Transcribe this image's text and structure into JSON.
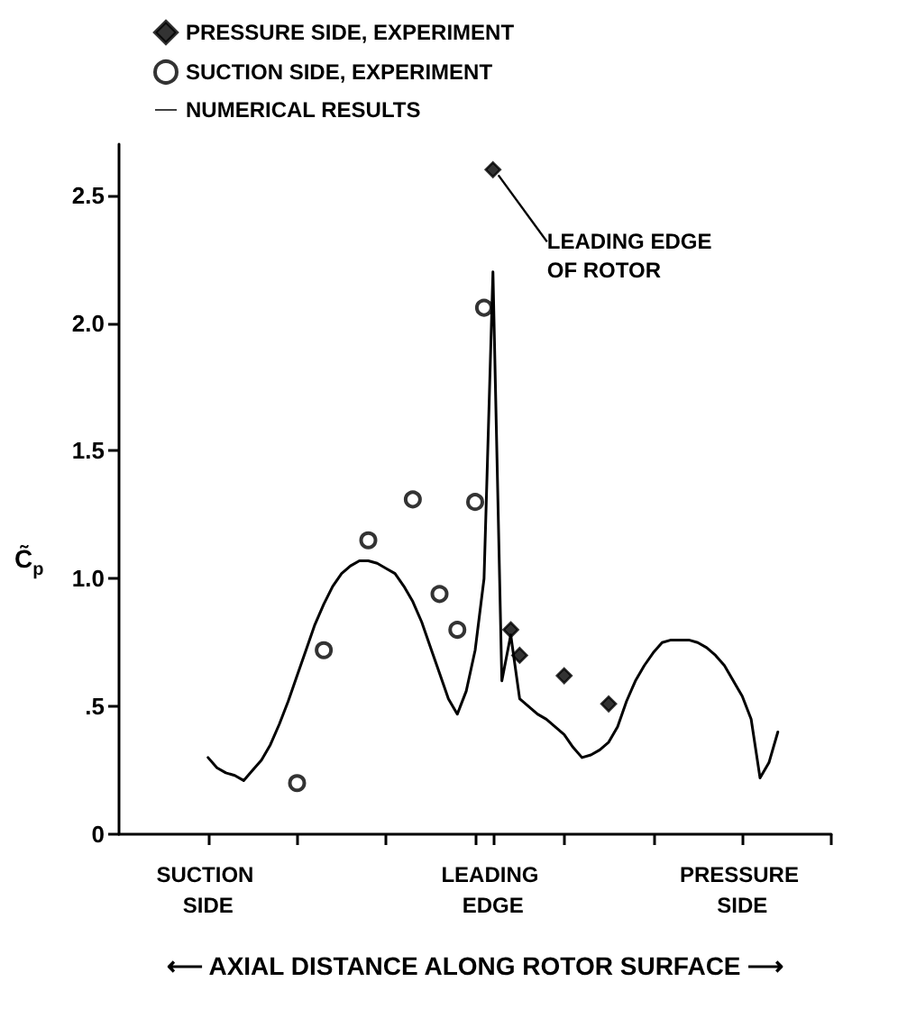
{
  "chart_data": {
    "type": "scatter",
    "xlabel": "⟵ AXIAL DISTANCE ALONG ROTOR SURFACE ⟶",
    "ylabel": "C̃$_{p}$",
    "categories": [
      null,
      null,
      null,
      null,
      null,
      null,
      null,
      null,
      null,
      null,
      "SUCTION SIDE",
      null,
      null,
      null,
      null,
      null,
      null,
      null,
      null,
      null,
      null,
      null,
      null,
      null,
      null,
      null,
      null,
      null,
      null,
      null,
      null,
      null,
      null,
      null,
      null,
      null,
      null,
      null,
      null,
      null,
      null,
      null,
      "LEADING EDGE",
      null,
      null,
      null,
      null,
      null,
      null,
      null,
      null,
      null,
      null,
      null,
      null,
      null,
      null,
      null,
      null,
      null,
      null,
      null,
      null,
      null,
      null,
      null,
      null,
      null,
      null,
      null,
      "PRESSURE SIDE",
      null,
      null,
      null,
      null,
      null,
      null,
      null,
      null,
      null,
      null
    ],
    "ylim": [
      0,
      2.7
    ],
    "yticks": [
      0,
      {
        "value": 0.5,
        "label": ".5"
      },
      {
        "value": 1,
        "label": "1.0"
      },
      1.5,
      {
        "value": 2,
        "label": "2.0"
      },
      2.5
    ],
    "grid": false,
    "legend": "top left",
    "series": [
      {
        "name": "PRESSURE SIDE, EXPERIMENT",
        "marker": "diamond",
        "color": "#000000",
        "values": [
          null,
          null,
          null,
          null,
          null,
          null,
          null,
          null,
          null,
          null,
          null,
          null,
          null,
          null,
          null,
          null,
          null,
          null,
          null,
          null,
          null,
          null,
          null,
          null,
          null,
          null,
          null,
          null,
          null,
          null,
          null,
          null,
          null,
          null,
          null,
          null,
          null,
          null,
          null,
          null,
          null,
          null,
          2.6,
          null,
          0.8,
          0.7,
          null,
          null,
          null,
          null,
          0.62,
          null,
          null,
          null,
          null,
          0.51,
          null,
          null,
          null,
          null,
          null,
          null,
          null,
          null,
          null,
          null,
          null,
          null,
          null,
          null,
          null,
          null,
          null,
          null,
          null,
          null,
          null,
          null,
          null,
          null,
          null
        ]
      },
      {
        "name": "SUCTION SIDE, EXPERIMENT",
        "marker": "circle",
        "color": "#000000",
        "values": [
          null,
          null,
          null,
          null,
          null,
          null,
          null,
          null,
          null,
          null,
          null,
          null,
          null,
          null,
          null,
          null,
          null,
          null,
          null,
          null,
          0.2,
          null,
          null,
          0.72,
          null,
          null,
          null,
          null,
          1.15,
          null,
          null,
          null,
          null,
          1.31,
          null,
          null,
          0.94,
          null,
          0.8,
          null,
          1.3,
          2.06,
          null,
          null,
          null,
          null,
          null,
          null,
          null,
          null,
          null,
          null,
          null,
          null,
          null,
          null,
          null,
          null,
          null,
          null,
          null,
          null,
          null,
          null,
          null,
          null,
          null,
          null,
          null,
          null,
          null,
          null,
          null,
          null,
          null,
          null,
          null,
          null,
          null,
          null,
          null
        ]
      },
      {
        "name": "NUMERICAL RESULTS",
        "type": "line",
        "marker": "none",
        "line_style": "solid",
        "color": "#000000",
        "values": [
          null,
          null,
          null,
          null,
          null,
          null,
          null,
          null,
          null,
          null,
          0.3,
          0.26,
          0.24,
          0.23,
          0.21,
          0.25,
          0.29,
          0.35,
          0.43,
          0.52,
          0.62,
          0.72,
          0.82,
          0.9,
          0.97,
          1.02,
          1.05,
          1.07,
          1.07,
          1.06,
          1.04,
          1.02,
          0.97,
          0.91,
          0.83,
          0.73,
          0.63,
          0.53,
          0.47,
          0.56,
          0.72,
          1.0,
          2.2,
          0.6,
          0.78,
          0.53,
          0.5,
          0.47,
          0.45,
          0.42,
          0.39,
          0.34,
          0.3,
          0.31,
          0.33,
          0.36,
          0.42,
          0.52,
          0.6,
          0.66,
          0.71,
          0.75,
          0.76,
          0.76,
          0.76,
          0.75,
          0.73,
          0.7,
          0.66,
          0.6,
          0.54,
          0.45,
          0.22,
          0.28,
          0.4,
          null,
          null,
          null,
          null,
          null,
          null
        ]
      }
    ],
    "annotations": [
      {
        "text": "LEADING EDGE OF ROTOR",
        "x": "LEADING EDGE",
        "y": 2.6
      }
    ]
  }
}
